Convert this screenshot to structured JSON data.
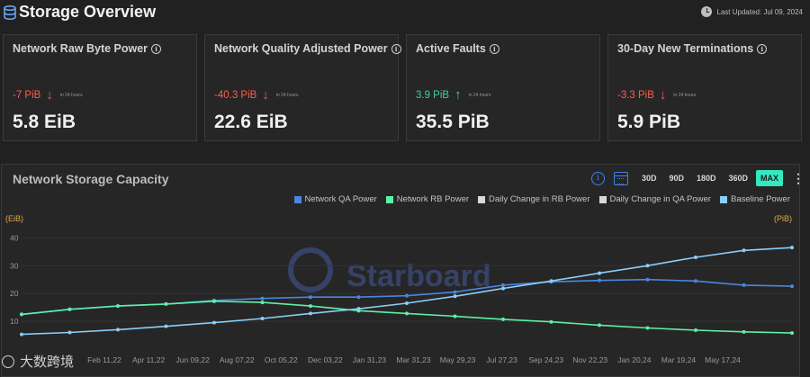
{
  "header": {
    "title": "Storage Overview",
    "last_updated": "Last Updated: Jul 09, 2024"
  },
  "cards": [
    {
      "title": "Network Raw Byte Power",
      "delta": "-7 PiB",
      "direction": "down",
      "period": "in 24 hours",
      "value": "5.8 EiB"
    },
    {
      "title": "Network Quality Adjusted Power",
      "delta": "-40.3 PiB",
      "direction": "down",
      "period": "in 24 hours",
      "value": "22.6 EiB"
    },
    {
      "title": "Active Faults",
      "delta": "3.9 PiB",
      "direction": "up",
      "period": "in 24 hours",
      "value": "35.5 PiB"
    },
    {
      "title": "30-Day New Terminations",
      "delta": "-3.3 PiB",
      "direction": "down",
      "period": "in 24 hours",
      "value": "5.9 PiB"
    }
  ],
  "chart_panel": {
    "title": "Network Storage Capacity",
    "ranges": [
      "30D",
      "90D",
      "180D",
      "360D",
      "MAX"
    ],
    "active_range": "MAX",
    "watermark": "Starboard",
    "badge_text": "大数跨境"
  },
  "colors": {
    "qa": "#4a86e0",
    "rb": "#5ff0a8",
    "baseline": "#8ccdf8",
    "daily_rb": "#d8d8d8",
    "daily_qa": "#d8d8d8",
    "accent": "#34e8c0",
    "negative": "#ff5a4e",
    "positive": "#3fcf9c",
    "axis_units": "#e3a548"
  },
  "chart_data": {
    "type": "line",
    "ylabel_left": "(EiB)",
    "ylabel_right": "(PiB)",
    "y_ticks": [
      10,
      20,
      30,
      40
    ],
    "ylim": [
      0,
      44
    ],
    "x_tick_labels": [
      "Feb 11,22",
      "Apr 11,22",
      "Jun 09,22",
      "Aug 07,22",
      "Oct 05,22",
      "Dec 03,22",
      "Jan 31,23",
      "Mar 31,23",
      "May 29,23",
      "Jul 27,23",
      "Sep 24,23",
      "Nov 22,23",
      "Jan 20,24",
      "Mar 19,24",
      "May 17,24"
    ],
    "x": [
      "Nov 2021",
      "Jan 2022",
      "Mar 2022",
      "May 2022",
      "Jul 2022",
      "Sep 2022",
      "Nov 2022",
      "Jan 2023",
      "Mar 2023",
      "May 2023",
      "Jul 2023",
      "Sep 2023",
      "Nov 2023",
      "Jan 2024",
      "Mar 2024",
      "May 2024",
      "Jul 2024"
    ],
    "legend": [
      "Network QA Power",
      "Network RB Power",
      "Daily Change in RB Power",
      "Daily Change in QA Power",
      "Baseline Power"
    ],
    "series": [
      {
        "name": "Network QA Power",
        "values": [
          12.5,
          14.3,
          15.5,
          16.2,
          17.5,
          18.2,
          18.7,
          18.7,
          19.2,
          20.5,
          23.0,
          24.2,
          24.7,
          25.0,
          24.5,
          23.0,
          22.6
        ]
      },
      {
        "name": "Network RB Power",
        "values": [
          12.5,
          14.3,
          15.5,
          16.2,
          17.2,
          16.8,
          15.5,
          13.8,
          12.8,
          11.8,
          10.7,
          9.8,
          8.6,
          7.6,
          6.8,
          6.2,
          5.8
        ]
      },
      {
        "name": "Baseline Power",
        "values": [
          5.3,
          6.0,
          7.0,
          8.2,
          9.5,
          11.0,
          12.8,
          14.5,
          16.5,
          19.0,
          21.8,
          24.5,
          27.3,
          30.0,
          33.0,
          35.5,
          36.5
        ]
      }
    ]
  }
}
